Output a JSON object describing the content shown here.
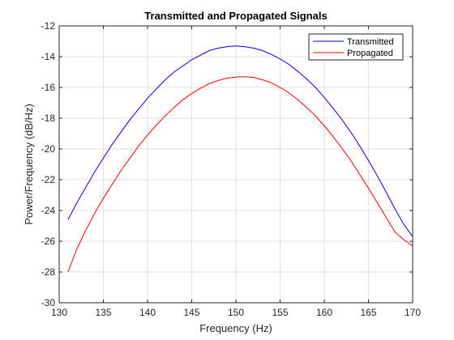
{
  "chart_data": {
    "type": "line",
    "title": "Transmitted and Propagated Signals",
    "xlabel": "Frequency (Hz)",
    "ylabel": "Power/Frequency (dB/Hz)",
    "xlim": [
      130,
      170
    ],
    "ylim": [
      -30,
      -12
    ],
    "xticks": [
      130,
      135,
      140,
      145,
      150,
      155,
      160,
      165,
      170
    ],
    "yticks": [
      -30,
      -28,
      -26,
      -24,
      -22,
      -20,
      -18,
      -16,
      -14,
      -12
    ],
    "grid": true,
    "legend_position": "top-right",
    "series": [
      {
        "name": "Transmitted",
        "color": "#0000ff",
        "x": [
          131,
          132,
          133,
          134,
          135,
          136,
          137,
          138,
          139,
          140,
          141,
          142,
          143,
          144,
          145,
          146,
          147,
          148,
          149,
          150,
          151,
          152,
          153,
          154,
          155,
          156,
          157,
          158,
          159,
          160,
          161,
          162,
          163,
          164,
          165,
          166,
          167,
          168,
          169,
          170
        ],
        "y": [
          -24.6,
          -23.5,
          -22.5,
          -21.5,
          -20.6,
          -19.7,
          -18.9,
          -18.1,
          -17.4,
          -16.7,
          -16.1,
          -15.5,
          -15.0,
          -14.6,
          -14.2,
          -13.9,
          -13.6,
          -13.45,
          -13.35,
          -13.3,
          -13.35,
          -13.45,
          -13.6,
          -13.85,
          -14.15,
          -14.5,
          -14.95,
          -15.45,
          -16.0,
          -16.65,
          -17.35,
          -18.1,
          -18.9,
          -19.8,
          -20.75,
          -21.75,
          -22.8,
          -23.9,
          -24.9,
          -25.7
        ]
      },
      {
        "name": "Propagated",
        "color": "#ff0000",
        "x": [
          131,
          132,
          133,
          134,
          135,
          136,
          137,
          138,
          139,
          140,
          141,
          142,
          143,
          144,
          145,
          146,
          147,
          148,
          149,
          150,
          151,
          152,
          153,
          154,
          155,
          156,
          157,
          158,
          159,
          160,
          161,
          162,
          163,
          164,
          165,
          166,
          167,
          168,
          169,
          170
        ],
        "y": [
          -28.0,
          -26.5,
          -25.3,
          -24.2,
          -23.2,
          -22.3,
          -21.4,
          -20.6,
          -19.8,
          -19.1,
          -18.45,
          -17.85,
          -17.3,
          -16.8,
          -16.4,
          -16.05,
          -15.75,
          -15.55,
          -15.4,
          -15.32,
          -15.3,
          -15.35,
          -15.5,
          -15.7,
          -16.0,
          -16.35,
          -16.8,
          -17.3,
          -17.85,
          -18.5,
          -19.2,
          -19.95,
          -20.75,
          -21.65,
          -22.55,
          -23.5,
          -24.45,
          -25.4,
          -25.9,
          -26.3
        ]
      }
    ]
  }
}
